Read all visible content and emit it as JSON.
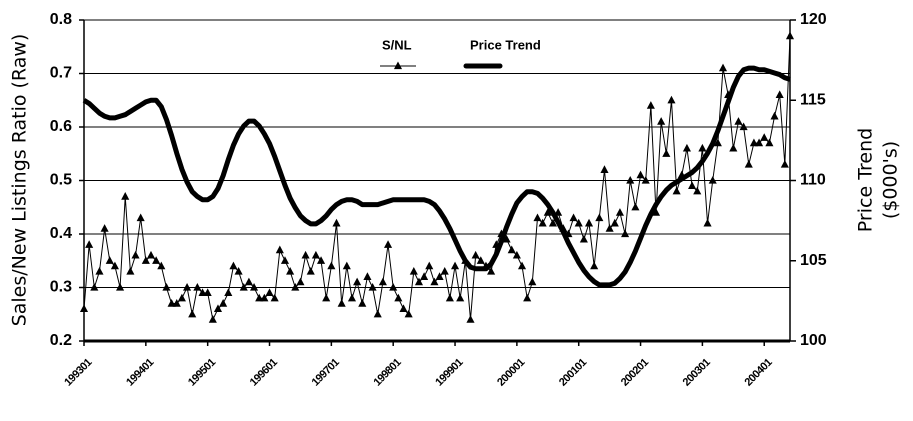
{
  "chart_data": {
    "type": "line",
    "y_label": "Sales/New Listings Ratio (Raw)",
    "y2_label": [
      "Price Trend",
      "($000's)"
    ],
    "categories": [
      "199301",
      null,
      null,
      null,
      null,
      null,
      null,
      null,
      null,
      null,
      null,
      null,
      "199401",
      null,
      null,
      null,
      null,
      null,
      null,
      null,
      null,
      null,
      null,
      null,
      "199501",
      null,
      null,
      null,
      null,
      null,
      null,
      null,
      null,
      null,
      null,
      null,
      "199601",
      null,
      null,
      null,
      null,
      null,
      null,
      null,
      null,
      null,
      null,
      null,
      "199701",
      null,
      null,
      null,
      null,
      null,
      null,
      null,
      null,
      null,
      null,
      null,
      "199801",
      null,
      null,
      null,
      null,
      null,
      null,
      null,
      null,
      null,
      null,
      null,
      "199901",
      null,
      null,
      null,
      null,
      null,
      null,
      null,
      null,
      null,
      null,
      null,
      "200001",
      null,
      null,
      null,
      null,
      null,
      null,
      null,
      null,
      null,
      null,
      null,
      "200101",
      null,
      null,
      null,
      null,
      null,
      null,
      null,
      null,
      null,
      null,
      null,
      "200201",
      null,
      null,
      null,
      null,
      null,
      null,
      null,
      null,
      null,
      null,
      null,
      "200301",
      null,
      null,
      null,
      null,
      null,
      null,
      null,
      null,
      null,
      null,
      null,
      "200401",
      null,
      null,
      null,
      null,
      null
    ],
    "series": [
      {
        "name": "S/NL",
        "color": "#000000",
        "marker": "triangle",
        "values": [
          0.26,
          0.38,
          0.3,
          0.33,
          0.41,
          0.35,
          0.34,
          0.3,
          0.47,
          0.33,
          0.36,
          0.43,
          0.35,
          0.36,
          0.35,
          0.34,
          0.3,
          0.27,
          0.27,
          0.28,
          0.3,
          0.25,
          0.3,
          0.29,
          0.29,
          0.24,
          0.26,
          0.27,
          0.29,
          0.34,
          0.33,
          0.3,
          0.31,
          0.3,
          0.28,
          0.28,
          0.29,
          0.28,
          0.37,
          0.35,
          0.33,
          0.3,
          0.31,
          0.36,
          0.33,
          0.36,
          0.35,
          0.28,
          0.34,
          0.42,
          0.27,
          0.34,
          0.28,
          0.31,
          0.27,
          0.32,
          0.3,
          0.25,
          0.31,
          0.38,
          0.3,
          0.28,
          0.26,
          0.25,
          0.33,
          0.31,
          0.32,
          0.34,
          0.31,
          0.32,
          0.33,
          0.28,
          0.34,
          0.28,
          0.35,
          0.24,
          0.36,
          0.35,
          0.34,
          0.33,
          0.38,
          0.4,
          0.39,
          0.37,
          0.36,
          0.34,
          0.28,
          0.31,
          0.43,
          0.42,
          0.44,
          0.42,
          0.44,
          0.41,
          0.4,
          0.43,
          0.42,
          0.39,
          0.42,
          0.34,
          0.43,
          0.52,
          0.41,
          0.42,
          0.44,
          0.4,
          0.5,
          0.45,
          0.51,
          0.5,
          0.64,
          0.44,
          0.61,
          0.55,
          0.65,
          0.48,
          0.51,
          0.56,
          0.49,
          0.48,
          0.56,
          0.42,
          0.5,
          0.57,
          0.71,
          0.66,
          0.56,
          0.61,
          0.6,
          0.53,
          0.57,
          0.57,
          0.58,
          0.57,
          0.62,
          0.66,
          0.53,
          0.77
        ]
      },
      {
        "name": "Price Trend",
        "color": "#000000",
        "axis": "y2",
        "values": [
          115.0,
          114.8,
          114.5,
          114.2,
          114.0,
          113.9,
          113.9,
          114.0,
          114.1,
          114.3,
          114.5,
          114.7,
          114.9,
          115.0,
          115.0,
          114.6,
          113.8,
          112.8,
          111.7,
          110.7,
          109.9,
          109.3,
          109.0,
          108.8,
          108.8,
          109.0,
          109.5,
          110.3,
          111.3,
          112.2,
          112.9,
          113.4,
          113.7,
          113.7,
          113.4,
          112.9,
          112.3,
          111.5,
          110.6,
          109.7,
          108.9,
          108.3,
          107.8,
          107.5,
          107.3,
          107.3,
          107.5,
          107.8,
          108.2,
          108.5,
          108.7,
          108.8,
          108.8,
          108.7,
          108.5,
          108.5,
          108.5,
          108.5,
          108.6,
          108.7,
          108.8,
          108.8,
          108.8,
          108.8,
          108.8,
          108.8,
          108.8,
          108.7,
          108.5,
          108.1,
          107.6,
          107.0,
          106.3,
          105.6,
          105.0,
          104.6,
          104.5,
          104.5,
          104.5,
          104.8,
          105.4,
          106.2,
          107.1,
          107.9,
          108.6,
          109.0,
          109.3,
          109.3,
          109.2,
          108.9,
          108.5,
          108.0,
          107.4,
          106.8,
          106.1,
          105.5,
          104.9,
          104.4,
          104.0,
          103.7,
          103.5,
          103.5,
          103.5,
          103.6,
          103.9,
          104.3,
          104.9,
          105.6,
          106.4,
          107.2,
          107.9,
          108.5,
          109.0,
          109.4,
          109.7,
          109.9,
          110.1,
          110.3,
          110.5,
          110.8,
          111.2,
          111.7,
          112.3,
          113.1,
          114.0,
          114.9,
          115.8,
          116.5,
          116.9,
          117.0,
          117.0,
          116.9,
          116.9,
          116.8,
          116.7,
          116.6,
          116.4,
          116.3
        ]
      }
    ],
    "ylim": [
      0.2,
      0.8
    ],
    "yticks": [
      0.2,
      0.3,
      0.4,
      0.5,
      0.6,
      0.7,
      0.8
    ],
    "y2lim": [
      100,
      120
    ],
    "y2ticks": [
      100,
      105,
      110,
      115,
      120
    ],
    "grid": true,
    "legend": "top"
  }
}
